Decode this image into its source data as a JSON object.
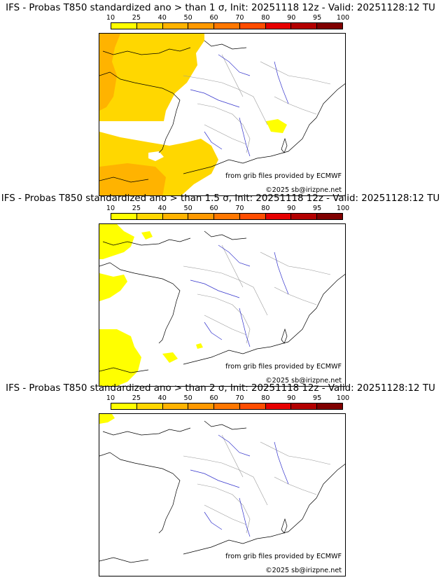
{
  "colorbar": {
    "ticks": [
      "10",
      "25",
      "40",
      "50",
      "60",
      "70",
      "80",
      "90",
      "95",
      "100"
    ],
    "colors": [
      "#ffff00",
      "#ffd700",
      "#ffb300",
      "#ff9900",
      "#ff7700",
      "#ff4d00",
      "#e60000",
      "#b30000",
      "#800000"
    ]
  },
  "panels": [
    {
      "title": "IFS - Probas T850  standardized ano > than 1 σ, Init: 20251118 12z - Valid: 20251128:12 TU",
      "source": "from grib files provided by ECMWF",
      "copyright": "©2025 sb@irizpne.net"
    },
    {
      "title": "IFS - Probas T850  standardized ano > than 1.5 σ, Init: 20251118 12z - Valid: 20251128:12 TU",
      "source": "from grib files provided by ECMWF",
      "copyright": "©2025 sb@irizpne.net"
    },
    {
      "title": "IFS - Probas T850  standardized ano > than 2 σ, Init: 20251118 12z - Valid: 20251128:12 TU",
      "source": "from grib files provided by ECMWF",
      "copyright": "©2025 sb@irizpne.net"
    }
  ]
}
